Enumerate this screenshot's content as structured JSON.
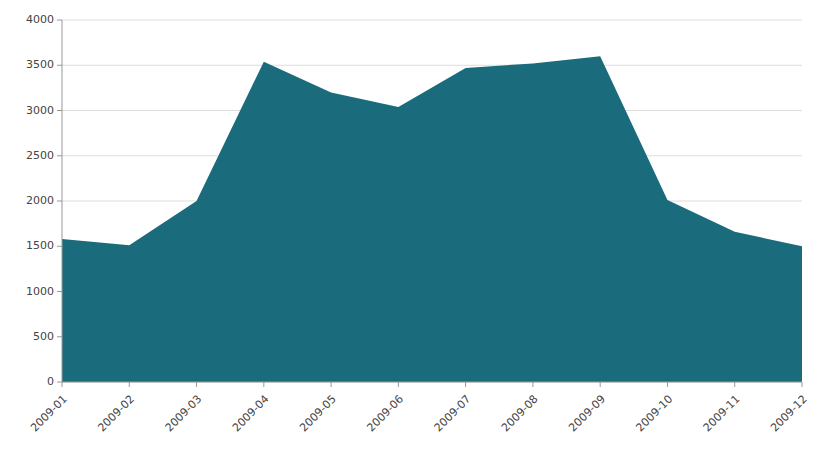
{
  "chart_data": {
    "type": "area",
    "categories": [
      "2009-01",
      "2009-02",
      "2009-03",
      "2009-04",
      "2009-05",
      "2009-06",
      "2009-07",
      "2009-08",
      "2009-09",
      "2009-10",
      "2009-11",
      "2009-12"
    ],
    "values": [
      1580,
      1510,
      2000,
      3540,
      3200,
      3040,
      3470,
      3520,
      3600,
      2010,
      1660,
      1500
    ],
    "color": "#1a6b7c",
    "ylim": [
      0,
      4000
    ],
    "yticks": [
      0,
      500,
      1000,
      1500,
      2000,
      2500,
      3000,
      3500,
      4000
    ],
    "grid": true
  }
}
